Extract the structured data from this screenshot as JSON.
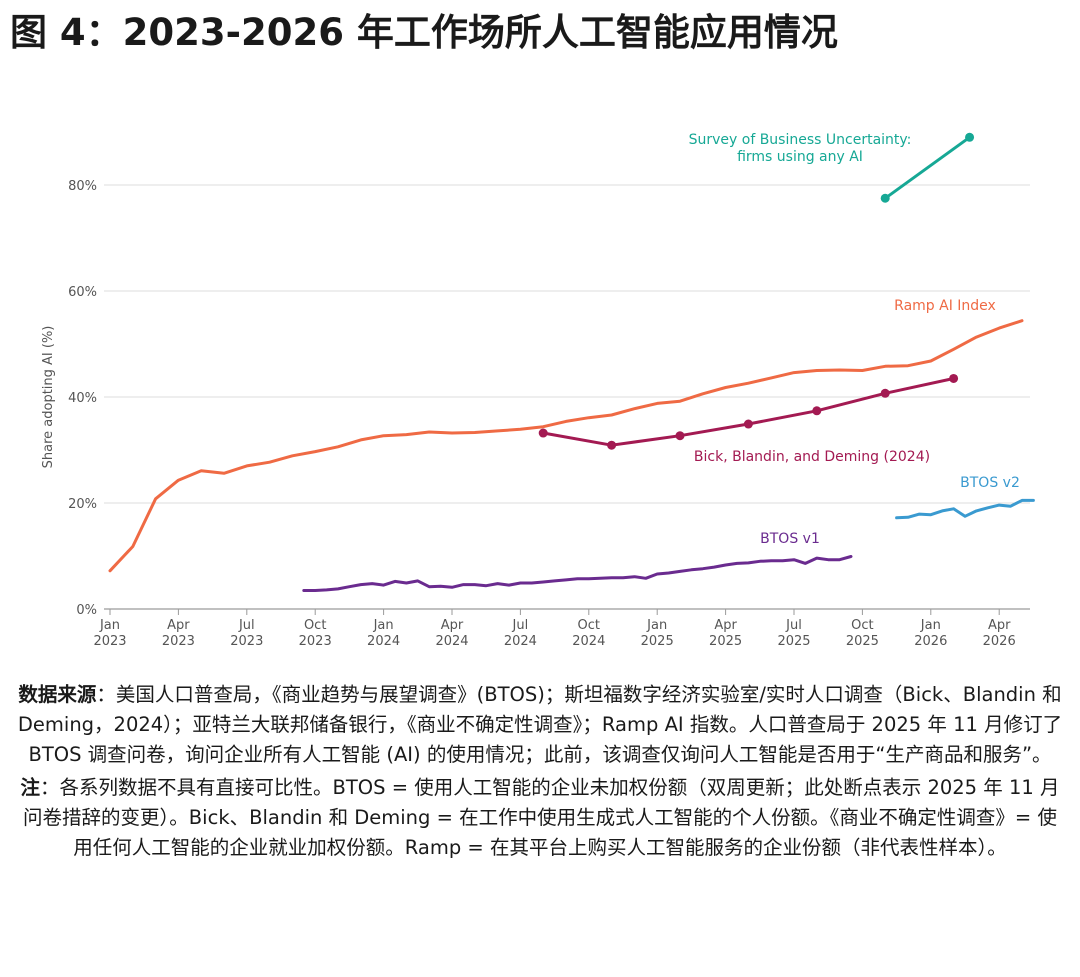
{
  "title": "图 4：2023-2026 年工作场所人工智能应用情况",
  "caption": {
    "source_label": "数据来源",
    "source_sep": "：",
    "source_text": "美国人口普查局，《商业趋势与展望调查》(BTOS)；斯坦福数字经济实验室/实时人口调查（Bick、Blandin 和 Deming，2024）；亚特兰大联邦储备银行，《商业不确定性调查》；Ramp AI 指数。人口普查局于 2025 年 11 月修订了 BTOS 调查问卷，询问企业所有人工智能 (AI) 的使用情况；此前，该调查仅询问人工智能是否用于“生产商品和服务”。",
    "note_label": "注",
    "note_sep": "：",
    "note_text": "各系列数据不具有直接可比性。BTOS = 使用人工智能的企业未加权份额（双周更新；此处断点表示 2025 年 11 月问卷措辞的变更）。Bick、Blandin 和 Deming = 在工作中使用生成式人工智能的个人份额。《商业不确定性调查》= 使用任何人工智能的企业就业加权份额。Ramp = 在其平台上购买人工智能服务的企业份额（非代表性样本）。"
  },
  "chart_data": {
    "type": "line",
    "ylabel": "Share adopting AI (%)",
    "ylim": [
      0,
      85
    ],
    "yticks": [
      0,
      20,
      40,
      60,
      80
    ],
    "ytick_labels": [
      "0%",
      "20%",
      "40%",
      "60%",
      "80%"
    ],
    "x_unit": "months since Jan 2023",
    "xlim": [
      0,
      40
    ],
    "xticks": [
      {
        "x": 0,
        "line1": "Jan",
        "line2": "2023"
      },
      {
        "x": 3,
        "line1": "Apr",
        "line2": "2023"
      },
      {
        "x": 6,
        "line1": "Jul",
        "line2": "2023"
      },
      {
        "x": 9,
        "line1": "Oct",
        "line2": "2023"
      },
      {
        "x": 12,
        "line1": "Jan",
        "line2": "2024"
      },
      {
        "x": 15,
        "line1": "Apr",
        "line2": "2024"
      },
      {
        "x": 18,
        "line1": "Jul",
        "line2": "2024"
      },
      {
        "x": 21,
        "line1": "Oct",
        "line2": "2024"
      },
      {
        "x": 24,
        "line1": "Jan",
        "line2": "2025"
      },
      {
        "x": 27,
        "line1": "Apr",
        "line2": "2025"
      },
      {
        "x": 30,
        "line1": "Jul",
        "line2": "2025"
      },
      {
        "x": 33,
        "line1": "Oct",
        "line2": "2025"
      },
      {
        "x": 36,
        "line1": "Jan",
        "line2": "2026"
      },
      {
        "x": 39,
        "line1": "Apr",
        "line2": "2026"
      }
    ],
    "grid": true,
    "series": [
      {
        "name": "Ramp AI Index",
        "color": "#ef6a44",
        "markers": false,
        "x": [
          0,
          1,
          2,
          3,
          4,
          5,
          6,
          7,
          8,
          9,
          10,
          11,
          12,
          13,
          14,
          15,
          16,
          17,
          18,
          19,
          20,
          21,
          22,
          23,
          24,
          25,
          26,
          27,
          28,
          29,
          30,
          31,
          32,
          33,
          34,
          35,
          36,
          37,
          38,
          39,
          40
        ],
        "values": [
          7.2,
          11.8,
          20.8,
          24.3,
          26.1,
          25.6,
          27.0,
          27.7,
          28.9,
          29.7,
          30.6,
          31.9,
          32.7,
          32.9,
          33.4,
          33.2,
          33.3,
          33.6,
          33.9,
          34.4,
          35.4,
          36.1,
          36.6,
          37.8,
          38.8,
          39.2,
          40.6,
          41.8,
          42.6,
          43.6,
          44.6,
          45.0,
          45.1,
          45.0,
          45.8,
          45.9,
          46.8,
          49.0,
          51.3,
          53.0,
          54.4
        ]
      },
      {
        "name": "Bick, Blandin, and Deming (2024)",
        "color": "#a31a52",
        "markers": true,
        "x": [
          19,
          22,
          25,
          28,
          31,
          34,
          37
        ],
        "values": [
          33.2,
          30.9,
          32.7,
          34.9,
          37.4,
          40.7,
          43.5
        ]
      },
      {
        "name": "BTOS v1",
        "color": "#6a2b8f",
        "markers": false,
        "x": [
          8.5,
          9,
          9.5,
          10,
          10.5,
          11,
          11.5,
          12,
          12.5,
          13,
          13.5,
          14,
          14.5,
          15,
          15.5,
          16,
          16.5,
          17,
          17.5,
          18,
          18.5,
          19,
          19.5,
          20,
          20.5,
          21,
          21.5,
          22,
          22.5,
          23,
          23.5,
          24,
          24.5,
          25,
          25.5,
          26,
          26.5,
          27,
          27.5,
          28,
          28.5,
          29,
          29.5,
          30,
          30.5,
          31,
          31.5,
          32,
          32.5
        ],
        "values": [
          3.5,
          3.5,
          3.6,
          3.8,
          4.2,
          4.6,
          4.8,
          4.5,
          5.2,
          4.9,
          5.3,
          4.2,
          4.3,
          4.1,
          4.6,
          4.6,
          4.4,
          4.8,
          4.5,
          4.9,
          4.9,
          5.1,
          5.3,
          5.5,
          5.7,
          5.7,
          5.8,
          5.9,
          5.9,
          6.1,
          5.8,
          6.6,
          6.8,
          7.1,
          7.4,
          7.6,
          7.9,
          8.3,
          8.6,
          8.7,
          9.0,
          9.1,
          9.1,
          9.3,
          8.6,
          9.6,
          9.3,
          9.3,
          9.9
        ]
      },
      {
        "name": "BTOS v2",
        "color": "#3a9ad0",
        "markers": false,
        "x": [
          34.5,
          35,
          35.5,
          36,
          36.5,
          37,
          37.5,
          38,
          38.5,
          39,
          39.5,
          40,
          40.5
        ],
        "values": [
          17.2,
          17.3,
          17.9,
          17.8,
          18.5,
          18.9,
          17.5,
          18.5,
          19.1,
          19.6,
          19.4,
          20.5,
          20.5
        ]
      },
      {
        "name": "Survey of Business Uncertainty: firms using any AI",
        "label_lines": [
          "Survey of Business Uncertainty:",
          "firms using any AI"
        ],
        "color": "#16a895",
        "markers": true,
        "x": [
          34,
          37.7
        ],
        "values": [
          77.5,
          89.0
        ]
      }
    ]
  }
}
